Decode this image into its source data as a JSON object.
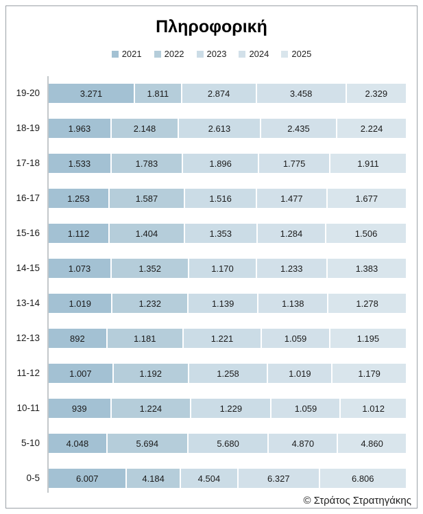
{
  "chart": {
    "title": "Πληροφορική",
    "credit": "© Στράτος Στρατηγάκης"
  },
  "chart_data": {
    "type": "bar",
    "orientation": "horizontal",
    "stacked": "100%",
    "title": "Πληροφορική",
    "legend_position": "top",
    "grid": false,
    "value_label_format": "thousands separated by dot (Greek format)",
    "categories": [
      "19-20",
      "18-19",
      "17-18",
      "16-17",
      "15-16",
      "14-15",
      "13-14",
      "12-13",
      "11-12",
      "10-11",
      "5-10",
      "0-5"
    ],
    "series": [
      {
        "name": "2021",
        "color": "#a3c1d3",
        "values": [
          3271,
          1963,
          1533,
          1253,
          1112,
          1073,
          1019,
          892,
          1007,
          939,
          4048,
          6007
        ]
      },
      {
        "name": "2022",
        "color": "#b5cdda",
        "values": [
          1811,
          2148,
          1783,
          1587,
          1404,
          1352,
          1232,
          1181,
          1192,
          1224,
          5694,
          4184
        ]
      },
      {
        "name": "2023",
        "color": "#cbdce6",
        "values": [
          2874,
          2613,
          1896,
          1516,
          1353,
          1170,
          1139,
          1221,
          1258,
          1229,
          5680,
          4504
        ]
      },
      {
        "name": "2024",
        "color": "#d2e0e9",
        "values": [
          3458,
          2435,
          1775,
          1477,
          1284,
          1233,
          1138,
          1059,
          1019,
          1059,
          4870,
          6327
        ]
      },
      {
        "name": "2025",
        "color": "#d9e5ec",
        "values": [
          2329,
          2224,
          1911,
          1677,
          1506,
          1383,
          1278,
          1195,
          1179,
          1012,
          4860,
          6806
        ]
      }
    ]
  }
}
